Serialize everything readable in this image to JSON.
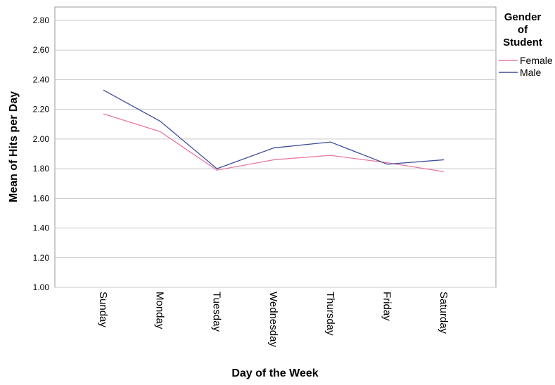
{
  "chart_data": {
    "type": "line",
    "x_label": "Day of the Week",
    "y_label": "Mean of Hits per Day",
    "legend_title": "Gender of Student",
    "categories": [
      "Sunday",
      "Monday",
      "Tuesday",
      "Wednesday",
      "Thursday",
      "Friday",
      "Saturday"
    ],
    "series": [
      {
        "name": "Female",
        "color": "#e8789f",
        "values": [
          2.17,
          2.05,
          1.79,
          1.86,
          1.89,
          1.84,
          1.78
        ]
      },
      {
        "name": "Male",
        "color": "#3f4d9c",
        "values": [
          2.33,
          2.12,
          1.8,
          1.94,
          1.98,
          1.83,
          1.86
        ]
      }
    ],
    "ylim": [
      1.0,
      2.89
    ],
    "yticks": [
      {
        "value": 1.0,
        "label": "1.00"
      },
      {
        "value": 1.2,
        "label": "1.20"
      },
      {
        "value": 1.4,
        "label": "1.40"
      },
      {
        "value": 1.6,
        "label": "1.60"
      },
      {
        "value": 1.8,
        "label": "1.80"
      },
      {
        "value": 2.0,
        "label": "2.00"
      },
      {
        "value": 2.2,
        "label": "2.20"
      },
      {
        "value": 2.4,
        "label": "2.40"
      },
      {
        "value": 2.6,
        "label": "2.60"
      },
      {
        "value": 2.8,
        "label": "2.80"
      }
    ],
    "grid": true
  }
}
